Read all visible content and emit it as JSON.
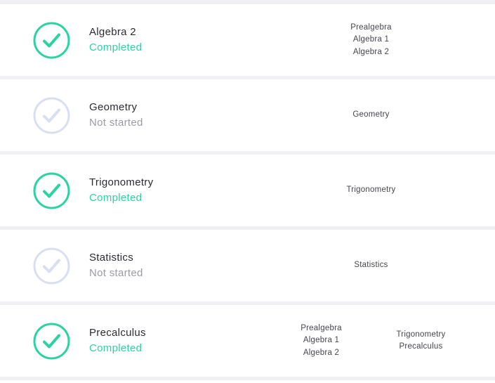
{
  "colors": {
    "accent": "#2bd3a2",
    "muted": "#d9dff0",
    "divider": "#efeff4",
    "title_text": "#2b2b33",
    "status_muted_text": "#9b9ba6",
    "list_text": "#45454d"
  },
  "icons": {
    "completed": "check-circle-icon",
    "not_started": "check-circle-icon"
  },
  "rows": [
    {
      "title": "Algebra 2",
      "status": "Completed",
      "completed": true,
      "groups": [
        [
          "Prealgebra",
          "Algebra 1",
          "Algebra 2"
        ]
      ]
    },
    {
      "title": "Geometry",
      "status": "Not started",
      "completed": false,
      "groups": [
        [
          "Geometry"
        ]
      ]
    },
    {
      "title": "Trigonometry",
      "status": "Completed",
      "completed": true,
      "groups": [
        [
          "Trigonometry"
        ]
      ]
    },
    {
      "title": "Statistics",
      "status": "Not started",
      "completed": false,
      "groups": [
        [
          "Statistics"
        ]
      ]
    },
    {
      "title": "Precalculus",
      "status": "Completed",
      "completed": true,
      "groups": [
        [
          "Prealgebra",
          "Algebra 1",
          "Algebra 2"
        ],
        [
          "Trigonometry",
          "Precalculus"
        ]
      ]
    }
  ]
}
